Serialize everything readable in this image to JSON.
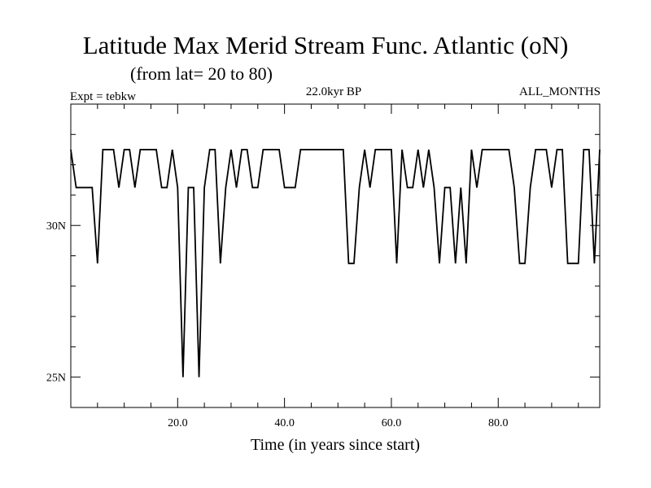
{
  "chart_data": {
    "type": "line",
    "title": "Latitude Max Merid Stream Func. Atlantic (oN)",
    "subtitle": "(from lat= 20 to 80)",
    "left_label": "Expt = tebkw",
    "center_label": "22.0kyr BP",
    "right_label": "ALL_MONTHS",
    "xlabel": "Time (in years since start)",
    "ylabel": "",
    "xlim": [
      0,
      99
    ],
    "ylim": [
      24,
      34
    ],
    "x_ticks": [
      20,
      40,
      60,
      80
    ],
    "x_tick_labels": [
      "20.0",
      "40.0",
      "60.0",
      "80.0"
    ],
    "y_ticks": [
      25,
      30
    ],
    "y_tick_labels": [
      "25N",
      "30N"
    ],
    "grid": false,
    "series": [
      {
        "x": [
          0,
          1,
          2,
          3,
          4,
          5,
          6,
          7,
          8,
          9,
          10,
          11,
          12,
          13,
          14,
          15,
          16,
          17,
          18,
          19,
          20,
          21,
          22,
          23,
          24,
          25,
          26,
          27,
          28,
          29,
          30,
          31,
          32,
          33,
          34,
          35,
          36,
          37,
          38,
          39,
          40,
          41,
          42,
          43,
          44,
          45,
          46,
          47,
          48,
          49,
          50,
          51,
          52,
          53,
          54,
          55,
          56,
          57,
          58,
          59,
          60,
          61,
          62,
          63,
          64,
          65,
          66,
          67,
          68,
          69,
          70,
          71,
          72,
          73,
          74,
          75,
          76,
          77,
          78,
          79,
          80,
          81,
          82,
          83,
          84,
          85,
          86,
          87,
          88,
          89,
          90,
          91,
          92,
          93,
          94,
          95,
          96,
          97,
          98,
          99
        ],
        "y": [
          32.5,
          31.25,
          31.25,
          31.25,
          31.25,
          28.75,
          32.5,
          32.5,
          32.5,
          31.25,
          32.5,
          32.5,
          31.25,
          32.5,
          32.5,
          32.5,
          32.5,
          31.25,
          31.25,
          32.5,
          31.25,
          25,
          31.25,
          31.25,
          25,
          31.25,
          32.5,
          32.5,
          28.75,
          31.25,
          32.5,
          31.25,
          32.5,
          32.5,
          31.25,
          31.25,
          32.5,
          32.5,
          32.5,
          32.5,
          31.25,
          31.25,
          31.25,
          32.5,
          32.5,
          32.5,
          32.5,
          32.5,
          32.5,
          32.5,
          32.5,
          32.5,
          28.75,
          28.75,
          31.25,
          32.5,
          31.25,
          32.5,
          32.5,
          32.5,
          32.5,
          28.75,
          32.5,
          31.25,
          31.25,
          32.5,
          31.25,
          32.5,
          31.25,
          28.75,
          31.25,
          31.25,
          28.75,
          31.25,
          28.75,
          32.5,
          31.25,
          32.5,
          32.5,
          32.5,
          32.5,
          32.5,
          32.5,
          31.25,
          28.75,
          28.75,
          31.25,
          32.5,
          32.5,
          32.5,
          31.25,
          32.5,
          32.5,
          28.75,
          28.75,
          28.75,
          32.5,
          32.5,
          28.75,
          32.5
        ]
      }
    ]
  }
}
